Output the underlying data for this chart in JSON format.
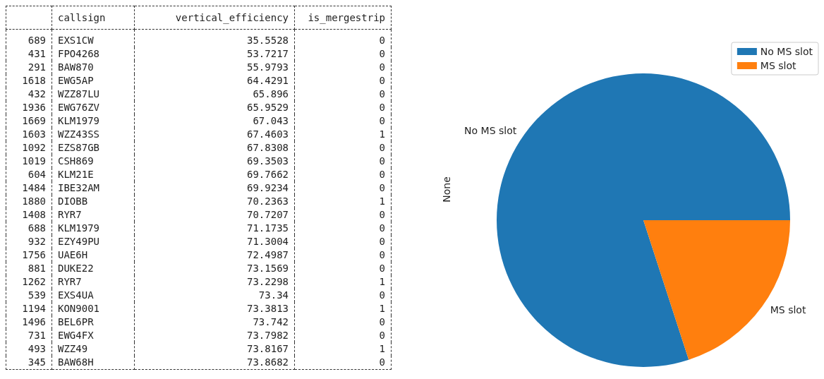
{
  "chart_data": [
    {
      "type": "other",
      "categories": [
        null,
        "callsign",
        "vertical_efficiency",
        "is_mergestrip"
      ],
      "cell_labels": [
        [
          "689",
          "EXS1CW",
          "35.5528",
          "0"
        ],
        [
          "431",
          "FPO4268",
          "53.7217",
          "0"
        ],
        [
          "291",
          "BAW870",
          "55.9793",
          "0"
        ],
        [
          "1618",
          "EWG5AP",
          "64.4291",
          "0"
        ],
        [
          "432",
          "WZZ87LU",
          "65.896",
          "0"
        ],
        [
          "1936",
          "EWG76ZV",
          "65.9529",
          "0"
        ],
        [
          "1669",
          "KLM1979",
          "67.043",
          "0"
        ],
        [
          "1603",
          "WZZ43SS",
          "67.4603",
          "1"
        ],
        [
          "1092",
          "EZS87GB",
          "67.8308",
          "0"
        ],
        [
          "1019",
          "CSH869",
          "69.3503",
          "0"
        ],
        [
          "604",
          "KLM21E",
          "69.7662",
          "0"
        ],
        [
          "1484",
          "IBE32AM",
          "69.9234",
          "0"
        ],
        [
          "1880",
          "DIOBB",
          "70.2363",
          "1"
        ],
        [
          "1408",
          "RYR7",
          "70.7207",
          "0"
        ],
        [
          "688",
          "KLM1979",
          "71.1735",
          "0"
        ],
        [
          "932",
          "EZY49PU",
          "71.3004",
          "0"
        ],
        [
          "1756",
          "UAE6H",
          "72.4987",
          "0"
        ],
        [
          "881",
          "DUKE22",
          "73.1569",
          "0"
        ],
        [
          "1262",
          "RYR7",
          "73.2298",
          "1"
        ],
        [
          "539",
          "EXS4UA",
          "73.34",
          "0"
        ],
        [
          "1194",
          "KON9001",
          "73.3813",
          "1"
        ],
        [
          "1496",
          "BEL6PR",
          "73.742",
          "0"
        ],
        [
          "731",
          "EWG4FX",
          "73.7982",
          "0"
        ],
        [
          "493",
          "WZZ49",
          "73.8167",
          "1"
        ],
        [
          "345",
          "BAW68H",
          "73.8682",
          "0"
        ]
      ]
    },
    {
      "type": "pie",
      "ylabel": "None",
      "categories": [
        "No MS slot",
        "MS slot"
      ],
      "values": [
        80,
        20
      ],
      "colors": [
        "#1f77b4",
        "#ff7f0e"
      ],
      "legend": "top right"
    }
  ]
}
